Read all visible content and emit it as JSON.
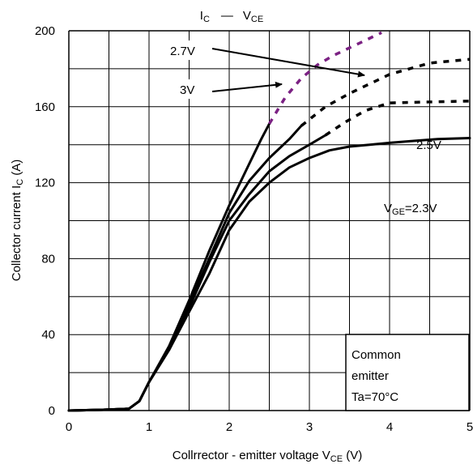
{
  "chart_data": {
    "type": "line",
    "title": {
      "main": "I",
      "main_sub": "C",
      "dash": "—",
      "v": "V",
      "v_sub": "CE"
    },
    "xlabel": {
      "text": "Collrrector - emitter voltage  V",
      "sub": "CE",
      "unit": " (V)"
    },
    "ylabel": {
      "text": "Collector current  I",
      "sub": "C",
      "unit": "  (A)"
    },
    "xlim": [
      0,
      5
    ],
    "ylim": [
      0,
      200
    ],
    "x_ticks": [
      0,
      1,
      2,
      3,
      4,
      5
    ],
    "y_ticks": [
      0,
      40,
      80,
      120,
      160,
      200
    ],
    "grid": true,
    "colors": {
      "solid": "#000000",
      "dotted_black": "#000000",
      "dotted_purple": "#7b2183",
      "grid": "#000000"
    },
    "series": [
      {
        "solid": [
          [
            0,
            0
          ],
          [
            0.5,
            0.5
          ],
          [
            0.75,
            1
          ],
          [
            0.88,
            5
          ],
          [
            1,
            15
          ],
          [
            1.25,
            32
          ],
          [
            1.5,
            52
          ],
          [
            1.75,
            72
          ],
          [
            2,
            95
          ],
          [
            2.25,
            110
          ],
          [
            2.5,
            120
          ],
          [
            2.75,
            128
          ],
          [
            3,
            133
          ],
          [
            3.25,
            137
          ],
          [
            3.5,
            139
          ],
          [
            3.75,
            140
          ],
          [
            4,
            141
          ],
          [
            4.3,
            142
          ],
          [
            4.6,
            143
          ],
          [
            5,
            143.5
          ]
        ],
        "dotted": [],
        "dotted_color": "dotted_black"
      },
      {
        "solid": [
          [
            0,
            0
          ],
          [
            0.5,
            0.5
          ],
          [
            0.75,
            1
          ],
          [
            0.88,
            5
          ],
          [
            1,
            15
          ],
          [
            1.25,
            32
          ],
          [
            1.5,
            54
          ],
          [
            1.75,
            78
          ],
          [
            2,
            100
          ],
          [
            2.25,
            114
          ],
          [
            2.5,
            126
          ],
          [
            2.75,
            134
          ],
          [
            3,
            140
          ],
          [
            3.2,
            145
          ]
        ],
        "dotted": [
          [
            3.2,
            145
          ],
          [
            3.45,
            152
          ],
          [
            3.7,
            158
          ],
          [
            4,
            162
          ],
          [
            4.5,
            162.5
          ],
          [
            5,
            163
          ]
        ],
        "dotted_color": "dotted_black"
      },
      {
        "solid": [
          [
            0,
            0
          ],
          [
            0.5,
            0.5
          ],
          [
            0.75,
            1
          ],
          [
            0.88,
            5
          ],
          [
            1,
            15
          ],
          [
            1.25,
            33
          ],
          [
            1.5,
            56
          ],
          [
            1.75,
            80
          ],
          [
            2,
            104
          ],
          [
            2.25,
            121
          ],
          [
            2.5,
            133
          ],
          [
            2.75,
            143
          ],
          [
            2.9,
            150
          ]
        ],
        "dotted": [
          [
            2.9,
            150
          ],
          [
            3.2,
            160
          ],
          [
            3.5,
            167
          ],
          [
            4,
            177
          ],
          [
            4.5,
            183
          ],
          [
            5,
            185
          ]
        ],
        "dotted_color": "dotted_black"
      },
      {
        "solid": [
          [
            0,
            0
          ],
          [
            0.5,
            0.5
          ],
          [
            0.75,
            1
          ],
          [
            0.88,
            5
          ],
          [
            1,
            15
          ],
          [
            1.25,
            34
          ],
          [
            1.5,
            58
          ],
          [
            1.75,
            84
          ],
          [
            2,
            108
          ],
          [
            2.25,
            130
          ],
          [
            2.4,
            143
          ],
          [
            2.5,
            151
          ]
        ],
        "dotted": [
          [
            2.5,
            151
          ],
          [
            2.7,
            165
          ],
          [
            2.9,
            175
          ],
          [
            3.1,
            182
          ],
          [
            3.3,
            187
          ],
          [
            3.6,
            193
          ],
          [
            3.9,
            199
          ]
        ],
        "dotted_color": "dotted_purple"
      }
    ],
    "annotations": {
      "v27": "2.7V",
      "v3": "3V",
      "v25": "2.5V",
      "vge_prefix": "V",
      "vge_sub": "GE",
      "vge_value": "=2.3V",
      "box_lines": [
        "Common",
        "emitter",
        "Ta=70°C"
      ]
    }
  }
}
